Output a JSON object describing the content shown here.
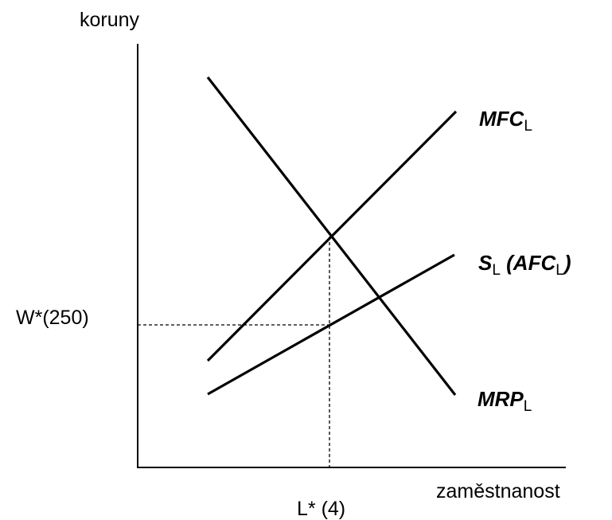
{
  "axes": {
    "y_label": "koruny",
    "x_label": "zaměstnanost"
  },
  "markers": {
    "wage": "W*(250)",
    "labor": "L* (4)"
  },
  "curves": [
    {
      "parts": [
        "MFC",
        "L"
      ]
    },
    {
      "parts": [
        "S",
        "L",
        " (AFC",
        "L",
        ")"
      ]
    },
    {
      "parts": [
        "MRP",
        "L"
      ]
    }
  ]
}
